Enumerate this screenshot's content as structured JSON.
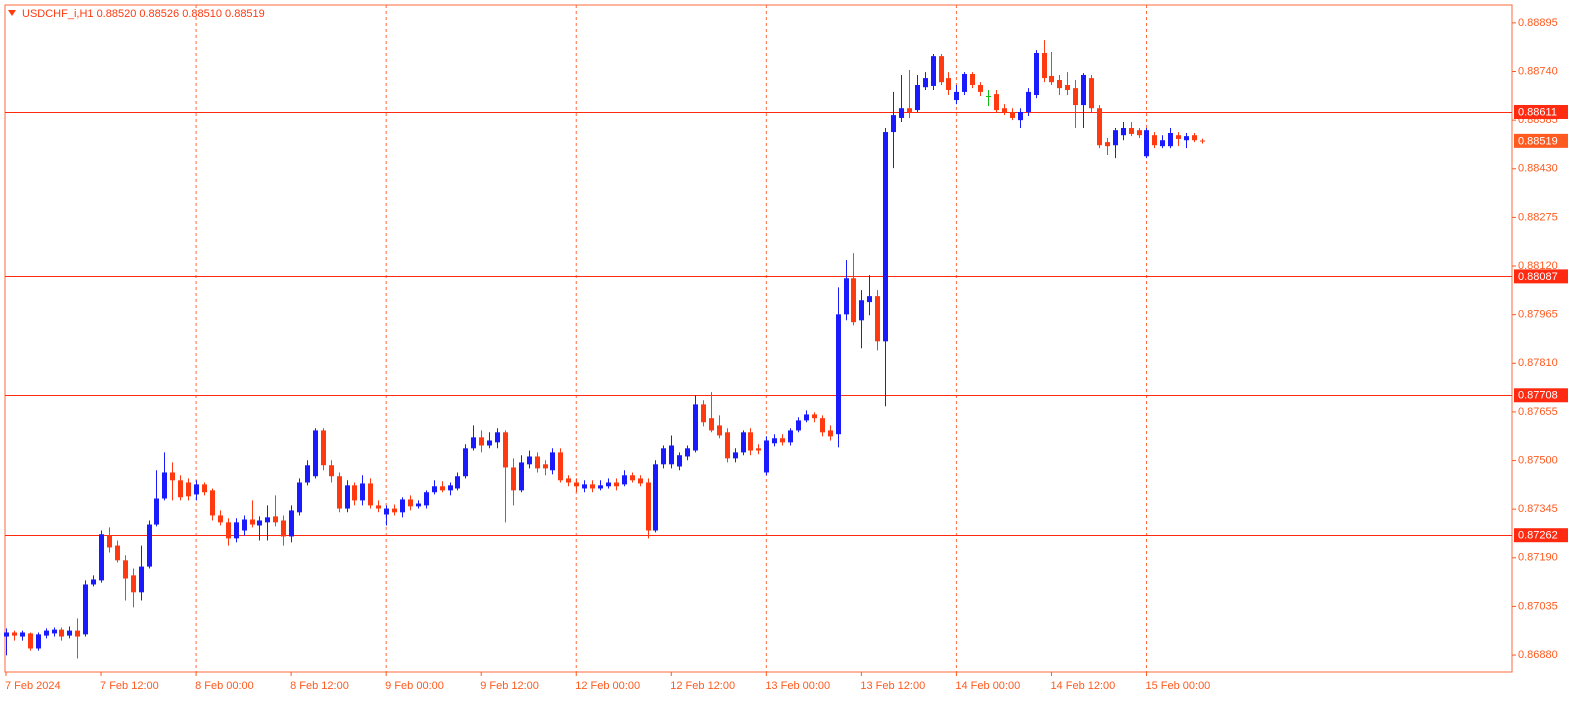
{
  "chart_data": {
    "type": "candlestick",
    "title": "USDCHF_i,H1  0.88520 0.88526 0.88510 0.88519",
    "categories": [
      "7 Feb 2024",
      null,
      null,
      null,
      null,
      null,
      null,
      null,
      null,
      null,
      null,
      null,
      "7 Feb 12:00",
      null,
      null,
      null,
      null,
      null,
      null,
      null,
      null,
      null,
      null,
      null,
      "8 Feb 00:00",
      null,
      null,
      null,
      null,
      null,
      null,
      null,
      null,
      null,
      null,
      null,
      "8 Feb 12:00",
      null,
      null,
      null,
      null,
      null,
      null,
      null,
      null,
      null,
      null,
      null,
      "9 Feb 00:00",
      null,
      null,
      null,
      null,
      null,
      null,
      null,
      null,
      null,
      null,
      null,
      "9 Feb 12:00",
      null,
      null,
      null,
      null,
      null,
      null,
      null,
      null,
      null,
      null,
      null,
      "12 Feb 00:00",
      null,
      null,
      null,
      null,
      null,
      null,
      null,
      null,
      null,
      null,
      null,
      "12 Feb 12:00",
      null,
      null,
      null,
      null,
      null,
      null,
      null,
      null,
      null,
      null,
      null,
      "13 Feb 00:00",
      null,
      null,
      null,
      null,
      null,
      null,
      null,
      null,
      null,
      null,
      null,
      "13 Feb 12:00",
      null,
      null,
      null,
      null,
      null,
      null,
      null,
      null,
      null,
      null,
      null,
      "14 Feb 00:00",
      null,
      null,
      null,
      null,
      null,
      null,
      null,
      null,
      null,
      null,
      null,
      "14 Feb 12:00",
      null,
      null,
      null,
      null,
      null,
      null,
      null,
      null,
      null,
      null,
      null,
      "15 Feb 00:00",
      null,
      null,
      null,
      null,
      null,
      null,
      null
    ],
    "open": [
      0.86939,
      0.86952,
      0.86939,
      0.86949,
      0.86901,
      0.86942,
      0.86949,
      0.86961,
      0.86942,
      0.86958,
      0.86946,
      0.87105,
      0.87118,
      0.87261,
      0.87229,
      0.87182,
      0.87134,
      0.8708,
      0.87162,
      0.87296,
      0.87379,
      0.87462,
      0.87437,
      0.8743,
      0.87392,
      0.87424,
      0.87405,
      0.87325,
      0.87303,
      0.87252,
      0.87277,
      0.87312,
      0.87293,
      0.87303,
      0.87322,
      0.87309,
      0.87258,
      0.87335,
      0.8743,
      0.8745,
      0.87596,
      0.87485,
      0.8745,
      0.87347,
      0.87421,
      0.87373,
      0.87427,
      0.87357,
      0.87328,
      0.87347,
      0.87335,
      0.87376,
      0.87354,
      0.87357,
      0.87399,
      0.87418,
      0.87405,
      0.87411,
      0.8745,
      0.87539,
      0.87574,
      0.87548,
      0.87558,
      0.8759,
      0.87478,
      0.87405,
      0.87488,
      0.87513,
      0.87488,
      0.87469,
      0.87526,
      0.87443,
      0.8743,
      0.87411,
      0.87424,
      0.87411,
      0.87418,
      0.8743,
      0.87424,
      0.87453,
      0.87443,
      0.8743,
      0.87277,
      0.87488,
      0.87488,
      0.87481,
      0.87513,
      0.87532,
      0.87679,
      0.87635,
      0.87612,
      0.8759,
      0.87507,
      0.87526,
      0.8759,
      0.87539,
      0.87462,
      0.87555,
      0.87571,
      0.87558,
      0.87596,
      0.87628,
      0.87647,
      0.87635,
      0.87596,
      0.87584,
      0.87966,
      0.88081,
      0.87947,
      0.88005,
      0.88024,
      0.8788,
      0.88547,
      0.88592,
      0.88623,
      0.88617,
      0.8869,
      0.88694,
      0.88789,
      0.88719,
      0.88649,
      0.88675,
      0.88732,
      0.88697,
      0.88662,
      0.88668,
      0.88623,
      0.88611,
      0.88585,
      0.88611,
      0.88665,
      0.88799,
      0.88726,
      0.88713,
      0.88697,
      0.88687,
      0.88633,
      0.88719,
      0.88623,
      0.88515,
      0.88505,
      0.88537,
      0.8856,
      0.88553,
      0.8847,
      0.88537,
      0.88502,
      0.88502,
      0.88537,
      0.88521,
      0.88537,
      0.8852
    ],
    "high": [
      0.86965,
      0.86958,
      0.86958,
      0.86952,
      0.86952,
      0.86965,
      0.86968,
      0.86968,
      0.86971,
      0.86997,
      0.87118,
      0.87134,
      0.87277,
      0.87287,
      0.87245,
      0.87198,
      0.87156,
      0.87229,
      0.87309,
      0.87469,
      0.87526,
      0.87494,
      0.87453,
      0.87443,
      0.87437,
      0.8743,
      0.87411,
      0.87341,
      0.87316,
      0.87316,
      0.87325,
      0.87373,
      0.87322,
      0.87357,
      0.87389,
      0.87325,
      0.87357,
      0.87443,
      0.87501,
      0.87603,
      0.87603,
      0.87501,
      0.87462,
      0.87437,
      0.8743,
      0.87453,
      0.87443,
      0.87373,
      0.87357,
      0.8736,
      0.87383,
      0.87389,
      0.87373,
      0.87405,
      0.87437,
      0.87434,
      0.8743,
      0.87462,
      0.87552,
      0.87612,
      0.87596,
      0.8759,
      0.87603,
      0.87596,
      0.87507,
      0.87517,
      0.87532,
      0.87526,
      0.87501,
      0.87539,
      0.87539,
      0.87453,
      0.87443,
      0.87437,
      0.87437,
      0.87437,
      0.87443,
      0.87443,
      0.87469,
      0.87462,
      0.87453,
      0.87443,
      0.87501,
      0.87548,
      0.8758,
      0.87526,
      0.87548,
      0.87708,
      0.87692,
      0.87718,
      0.87644,
      0.87603,
      0.87539,
      0.87596,
      0.87603,
      0.87552,
      0.87577,
      0.87584,
      0.87584,
      0.87603,
      0.87638,
      0.8766,
      0.87654,
      0.87644,
      0.87612,
      0.88052,
      0.88139,
      0.88161,
      0.88043,
      0.88091,
      0.88043,
      0.8856,
      0.88675,
      0.88729,
      0.88745,
      0.88729,
      0.88738,
      0.88796,
      0.88796,
      0.88738,
      0.88697,
      0.88738,
      0.88738,
      0.88706,
      0.88681,
      0.88681,
      0.88636,
      0.88623,
      0.88623,
      0.88687,
      0.88808,
      0.8884,
      0.88802,
      0.88729,
      0.88738,
      0.88713,
      0.88735,
      0.88729,
      0.88633,
      0.88528,
      0.8856,
      0.88579,
      0.88579,
      0.8856,
      0.8856,
      0.88547,
      0.88537,
      0.8856,
      0.88547,
      0.88544,
      0.88544,
      0.88526
    ],
    "low": [
      0.86879,
      0.86926,
      0.86926,
      0.86894,
      0.86894,
      0.86933,
      0.86939,
      0.86926,
      0.86933,
      0.86869,
      0.86939,
      0.87099,
      0.87111,
      0.87207,
      0.87175,
      0.87054,
      0.87032,
      0.87054,
      0.87156,
      0.8729,
      0.87373,
      0.87373,
      0.87373,
      0.87373,
      0.87373,
      0.87389,
      0.87309,
      0.87293,
      0.87229,
      0.87239,
      0.87261,
      0.87287,
      0.87245,
      0.87245,
      0.8729,
      0.87229,
      0.87239,
      0.87325,
      0.87421,
      0.87443,
      0.87469,
      0.8743,
      0.87335,
      0.87335,
      0.87357,
      0.87357,
      0.87347,
      0.87335,
      0.87293,
      0.87325,
      0.87319,
      0.87341,
      0.87347,
      0.87347,
      0.87392,
      0.87399,
      0.87389,
      0.87405,
      0.87443,
      0.87532,
      0.87526,
      0.87539,
      0.87539,
      0.87303,
      0.87357,
      0.87399,
      0.87475,
      0.87462,
      0.87453,
      0.87456,
      0.8743,
      0.87418,
      0.87399,
      0.87399,
      0.87399,
      0.87405,
      0.87411,
      0.87405,
      0.87418,
      0.8743,
      0.87418,
      0.87252,
      0.87271,
      0.87475,
      0.87475,
      0.87469,
      0.87501,
      0.87526,
      0.87609,
      0.8759,
      0.87571,
      0.87494,
      0.87494,
      0.87517,
      0.87517,
      0.8752,
      0.87453,
      0.87545,
      0.87548,
      0.87548,
      0.8759,
      0.87622,
      0.87622,
      0.87577,
      0.87564,
      0.87542,
      0.87947,
      0.87931,
      0.87858,
      0.87963,
      0.87851,
      0.87673,
      0.88432,
      0.88579,
      0.88592,
      0.88611,
      0.88681,
      0.88681,
      0.88697,
      0.88665,
      0.88636,
      0.88665,
      0.88687,
      0.88662,
      0.8863,
      0.88611,
      0.88601,
      0.88585,
      0.8856,
      0.88598,
      0.88655,
      0.88706,
      0.88697,
      0.88665,
      0.88665,
      0.8856,
      0.8856,
      0.88611,
      0.88496,
      0.88474,
      0.88464,
      0.88521,
      0.88534,
      0.88528,
      0.88464,
      0.88496,
      0.88496,
      0.88496,
      0.88502,
      0.88496,
      0.88515,
      0.8851
    ],
    "close": [
      0.86952,
      0.86942,
      0.86952,
      0.86901,
      0.86946,
      0.86958,
      0.86961,
      0.86939,
      0.86958,
      0.86939,
      0.87105,
      0.87121,
      0.87265,
      0.87223,
      0.87182,
      0.87124,
      0.8708,
      0.87162,
      0.87296,
      0.87379,
      0.87462,
      0.87437,
      0.87383,
      0.87386,
      0.87424,
      0.87399,
      0.87325,
      0.87303,
      0.87252,
      0.87303,
      0.87312,
      0.87296,
      0.87309,
      0.87319,
      0.87303,
      0.87258,
      0.87341,
      0.8743,
      0.87485,
      0.87596,
      0.87485,
      0.8745,
      0.87347,
      0.87421,
      0.87373,
      0.87427,
      0.87357,
      0.87347,
      0.87347,
      0.87335,
      0.87376,
      0.87354,
      0.87363,
      0.87399,
      0.87418,
      0.87405,
      0.87421,
      0.8745,
      0.87539,
      0.87574,
      0.87548,
      0.87564,
      0.8759,
      0.87478,
      0.87405,
      0.87494,
      0.87513,
      0.87475,
      0.87475,
      0.87526,
      0.87437,
      0.8743,
      0.87418,
      0.87424,
      0.87411,
      0.87421,
      0.8743,
      0.87418,
      0.87453,
      0.87437,
      0.87427,
      0.87277,
      0.87488,
      0.87539,
      0.87548,
      0.87517,
      0.87539,
      0.87679,
      0.87622,
      0.87596,
      0.8758,
      0.87507,
      0.87526,
      0.8759,
      0.87532,
      0.87532,
      0.87564,
      0.87571,
      0.87558,
      0.87596,
      0.87628,
      0.87647,
      0.87635,
      0.8759,
      0.87577,
      0.87966,
      0.88081,
      0.87941,
      0.88011,
      0.88024,
      0.8788,
      0.88547,
      0.88601,
      0.88623,
      0.88611,
      0.88697,
      0.88719,
      0.88789,
      0.88706,
      0.88681,
      0.88675,
      0.88732,
      0.88697,
      0.88675,
      0.88662,
      0.88617,
      0.88611,
      0.88592,
      0.88611,
      0.88675,
      0.88799,
      0.88719,
      0.88706,
      0.88687,
      0.88681,
      0.88633,
      0.88729,
      0.88623,
      0.88505,
      0.88502,
      0.88553,
      0.8856,
      0.88541,
      0.88537,
      0.88553,
      0.88505,
      0.88521,
      0.88544,
      0.88525,
      0.88534,
      0.88521,
      0.88519
    ],
    "ylim": [
      0.86826,
      0.88952
    ],
    "yticks": [
      0.88895,
      {
        "value": 0.8874,
        "label": "0.88740"
      },
      0.88585,
      {
        "value": 0.8843,
        "label": "0.88430"
      },
      0.88275,
      {
        "value": 0.8812,
        "label": "0.88120"
      },
      0.87965,
      {
        "value": 0.8781,
        "label": "0.87810"
      },
      0.87655,
      {
        "value": 0.875,
        "label": "0.87500"
      },
      0.87345,
      {
        "value": 0.8719,
        "label": "0.87190"
      },
      0.87035,
      {
        "value": 0.8688,
        "label": "0.86880"
      }
    ],
    "levels": [
      0.88611,
      0.88087,
      0.87708,
      0.87262
    ],
    "bid_price": 0.88519,
    "grid": true,
    "up_color": "#1a1aff",
    "down_color": "#ff3a10",
    "doji_color": "#10c010",
    "grid_color": "#ff6a3d",
    "level_color": "#ff2a10",
    "axis_color": "#ff5a1f"
  }
}
